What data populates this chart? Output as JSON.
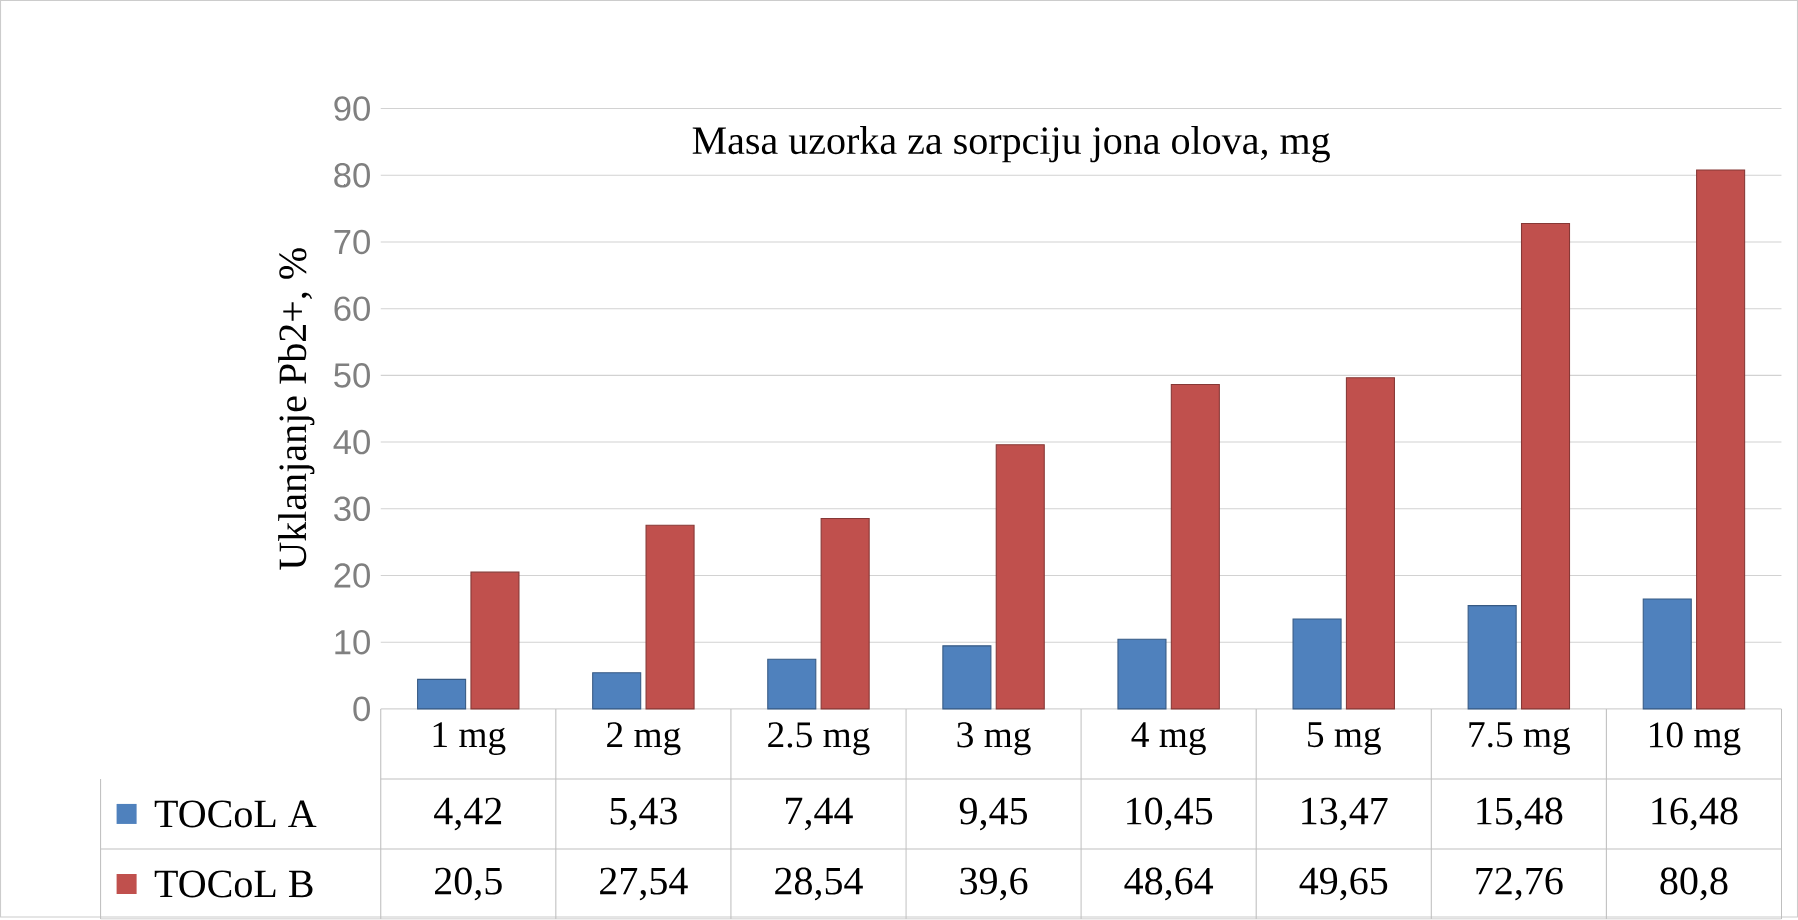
{
  "chart_data": {
    "type": "bar",
    "title": "Masa uzorka za sorpciju jona olova, mg",
    "ylabel": "Uklanjanje Pb2+, %",
    "categories": [
      "1 mg",
      "2 mg",
      "2.5 mg",
      "3 mg",
      "4 mg",
      "5 mg",
      "7.5 mg",
      "10 mg"
    ],
    "series": [
      {
        "name": "TOCoL A",
        "color": "#4f81bd",
        "values": [
          4.42,
          5.43,
          7.44,
          9.45,
          10.45,
          13.47,
          15.48,
          16.48
        ],
        "value_labels": [
          "4,42",
          "5,43",
          "7,44",
          "9,45",
          "10,45",
          "13,47",
          "15,48",
          "16,48"
        ]
      },
      {
        "name": "TOCoL B",
        "color": "#c0504d",
        "values": [
          20.5,
          27.54,
          28.54,
          39.6,
          48.64,
          49.65,
          72.76,
          80.8
        ],
        "value_labels": [
          "20,5",
          "27,54",
          "28,54",
          "39,6",
          "48,64",
          "49,65",
          "72,76",
          "80,8"
        ]
      }
    ],
    "ylim": [
      0,
      90
    ],
    "yticks": [
      0,
      10,
      20,
      30,
      40,
      50,
      60,
      70,
      80,
      90
    ],
    "grid": "y",
    "legend": "bottom"
  }
}
